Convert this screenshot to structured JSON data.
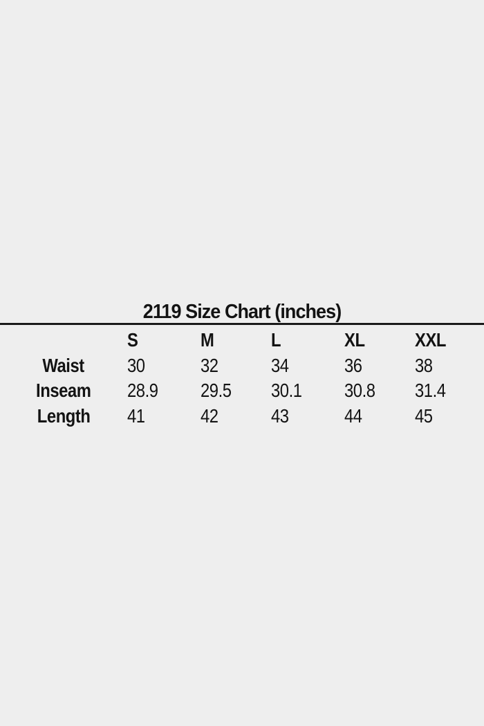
{
  "page": {
    "background_color": "#eeeeee",
    "text_color": "#131313",
    "divider_color": "#1a1a1a"
  },
  "size_chart": {
    "title": "2119 Size Chart (inches)",
    "columns": [
      "S",
      "M",
      "L",
      "XL",
      "XXL"
    ],
    "rows": [
      {
        "label": "Waist",
        "values": [
          "30",
          "32",
          "34",
          "36",
          "38"
        ]
      },
      {
        "label": "Inseam",
        "values": [
          "28.9",
          "29.5",
          "30.1",
          "30.8",
          "31.4"
        ]
      },
      {
        "label": "Length",
        "values": [
          "41",
          "42",
          "43",
          "44",
          "45"
        ]
      }
    ]
  },
  "chart_data": {
    "type": "table",
    "title": "2119 Size Chart (inches)",
    "columns": [
      "",
      "S",
      "M",
      "L",
      "XL",
      "XXL"
    ],
    "rows": [
      [
        "Waist",
        30,
        32,
        34,
        36,
        38
      ],
      [
        "Inseam",
        28.9,
        29.5,
        30.1,
        30.8,
        31.4
      ],
      [
        "Length",
        41,
        42,
        43,
        44,
        45
      ]
    ],
    "layout": {
      "grid": false,
      "title_align": "center",
      "header_row_bold": true,
      "label_column_bold": true
    }
  }
}
